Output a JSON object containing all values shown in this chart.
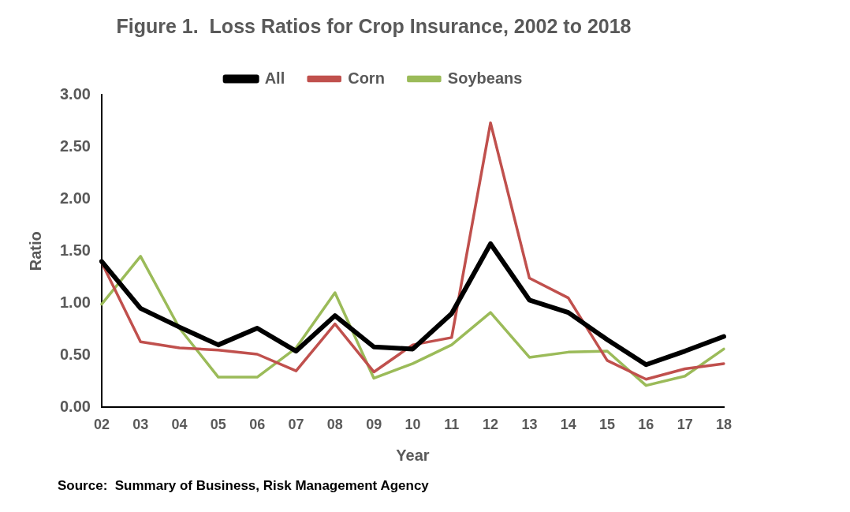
{
  "chart_data": {
    "type": "line",
    "title": "Figure 1.  Loss Ratios for Crop Insurance, 2002 to 2018",
    "xlabel": "Year",
    "ylabel": "Ratio",
    "categories": [
      "02",
      "03",
      "04",
      "05",
      "06",
      "07",
      "08",
      "09",
      "10",
      "11",
      "12",
      "13",
      "14",
      "15",
      "16",
      "17",
      "18"
    ],
    "ylim": [
      0,
      3
    ],
    "yticks": [
      {
        "value": 0,
        "label": "0.00"
      },
      {
        "value": 0.5,
        "label": "0.50"
      },
      {
        "value": 1,
        "label": "1.00"
      },
      {
        "value": 1.5,
        "label": "1.50"
      },
      {
        "value": 2,
        "label": "2.00"
      },
      {
        "value": 2.5,
        "label": "2.50"
      },
      {
        "value": 3,
        "label": "3.00"
      }
    ],
    "grid": false,
    "legend": "top",
    "marker": "none",
    "line_style": "solid",
    "series": [
      {
        "name": "All",
        "color": "#000000",
        "values": [
          1.4,
          0.95,
          0.77,
          0.6,
          0.76,
          0.54,
          0.88,
          0.58,
          0.56,
          0.9,
          1.57,
          1.03,
          0.91,
          0.65,
          0.41,
          0.54,
          0.68
        ]
      },
      {
        "name": "Corn",
        "color": "#c0504d",
        "values": [
          1.39,
          0.63,
          0.57,
          0.55,
          0.51,
          0.35,
          0.8,
          0.34,
          0.6,
          0.67,
          2.73,
          1.24,
          1.05,
          0.45,
          0.27,
          0.37,
          0.42
        ]
      },
      {
        "name": "Soybeans",
        "color": "#9bbb59",
        "values": [
          0.99,
          1.45,
          0.76,
          0.29,
          0.29,
          0.57,
          1.1,
          0.28,
          0.42,
          0.6,
          0.91,
          0.48,
          0.53,
          0.54,
          0.21,
          0.3,
          0.56
        ]
      }
    ],
    "annotations": [
      "Source:  Summary of Business, Risk Management Agency"
    ]
  }
}
